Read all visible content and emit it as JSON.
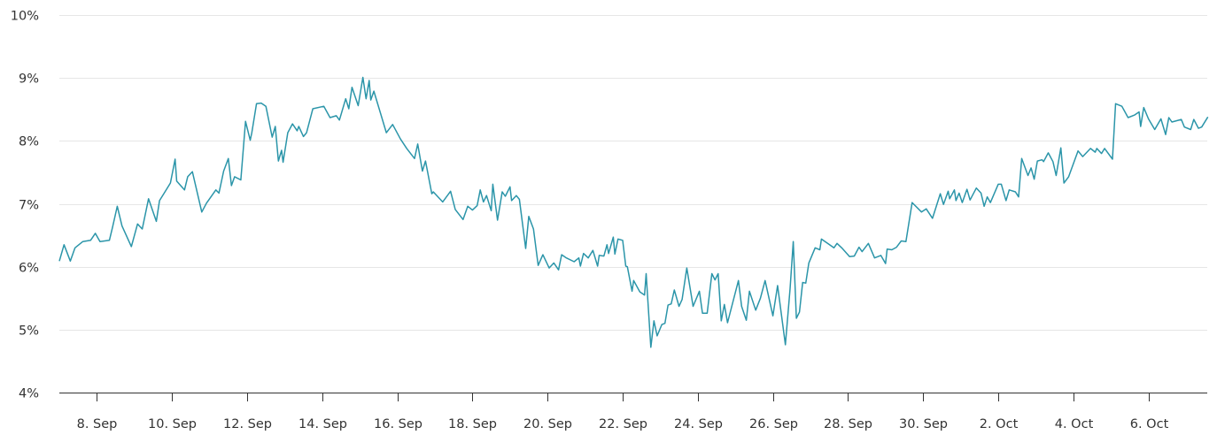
{
  "chart_data": {
    "type": "line",
    "title": "",
    "xlabel": "",
    "ylabel": "",
    "ylim": [
      4,
      10
    ],
    "y_ticks": [
      "4%",
      "5%",
      "6%",
      "7%",
      "8%",
      "9%",
      "10%"
    ],
    "y_tick_values": [
      4,
      5,
      6,
      7,
      8,
      9,
      10
    ],
    "x_ticks": [
      "8. Sep",
      "10. Sep",
      "12. Sep",
      "14. Sep",
      "16. Sep",
      "18. Sep",
      "20. Sep",
      "22. Sep",
      "24. Sep",
      "26. Sep",
      "28. Sep",
      "30. Sep",
      "2. Oct",
      "4. Oct",
      "6. Oct"
    ],
    "x_tick_dates": [
      "09-08 00:00",
      "09-10 00:00",
      "09-12 00:00",
      "09-14 00:00",
      "09-16 00:00",
      "09-18 00:00",
      "09-20 00:00",
      "09-22 00:00",
      "09-24 00:00",
      "09-26 00:00",
      "09-28 00:00",
      "09-30 00:00",
      "10-02 00:00",
      "10-04 00:00",
      "10-06 00:00"
    ],
    "xlim": [
      "09-07 00:00",
      "10-07 14:00"
    ],
    "grid": true,
    "legend": "none",
    "line_color": "#2b95a9",
    "series": [
      {
        "x": [
          "09-07 00:00",
          "09-07 03:00",
          "09-07 07:00",
          "09-07 10:00",
          "09-07 15:00",
          "09-07 20:00",
          "09-07 23:00",
          "09-08 02:00",
          "09-08 08:00",
          "09-08 10:00",
          "09-08 13:00",
          "09-08 16:00",
          "09-08 22:00",
          "09-09 02:00",
          "09-09 05:00",
          "09-09 09:00",
          "09-09 14:00",
          "09-09 16:00",
          "09-09 19:00",
          "09-09 23:00",
          "09-10 02:00",
          "09-10 03:00",
          "09-10 08:00",
          "09-10 10:00",
          "09-10 13:00",
          "09-10 19:00",
          "09-10 22:00",
          "09-11 04:00",
          "09-11 06:00",
          "09-11 09:00",
          "09-11 12:00",
          "09-11 14:00",
          "09-11 16:00",
          "09-11 20:00",
          "09-11 23:00",
          "09-12 02:00",
          "09-12 03:00",
          "09-12 06:00",
          "09-12 09:00",
          "09-12 12:00",
          "09-12 16:00",
          "09-12 18:00",
          "09-12 20:00",
          "09-12 22:00",
          "09-12 23:00",
          "09-13 02:00",
          "09-13 05:00",
          "09-13 08:00",
          "09-13 09:00",
          "09-13 12:00",
          "09-13 14:00",
          "09-13 18:00",
          "09-14 01:00",
          "09-14 05:00",
          "09-14 09:00",
          "09-14 11:00",
          "09-14 15:00",
          "09-14 17:00",
          "09-14 19:00",
          "09-14 23:00",
          "09-15 02:00",
          "09-15 04:00",
          "09-15 06:00",
          "09-15 07:00",
          "09-15 09:00",
          "09-15 17:00",
          "09-15 21:00",
          "09-16 02:00",
          "09-16 06:00",
          "09-16 11:00",
          "09-16 13:00",
          "09-16 16:00",
          "09-16 18:00",
          "09-16 22:00",
          "09-16 23:00",
          "09-17 05:00",
          "09-17 10:00",
          "09-17 13:00",
          "09-17 18:00",
          "09-17 21:00",
          "09-18 00:00",
          "09-18 03:00",
          "09-18 05:00",
          "09-18 07:00",
          "09-18 09:00",
          "09-18 12:00",
          "09-18 13:00",
          "09-18 16:00",
          "09-18 19:00",
          "09-18 21:00",
          "09-19 00:00",
          "09-19 01:00",
          "09-19 04:00",
          "09-19 06:00",
          "09-19 10:00",
          "09-19 12:00",
          "09-19 15:00",
          "09-19 18:00",
          "09-19 21:00",
          "09-20 01:00",
          "09-20 04:00",
          "09-20 07:00",
          "09-20 09:00",
          "09-20 12:00",
          "09-20 17:00",
          "09-20 20:00",
          "09-20 21:00",
          "09-20 23:00",
          "09-21 02:00",
          "09-21 05:00",
          "09-21 08:00",
          "09-21 09:00",
          "09-21 12:00",
          "09-21 14:00",
          "09-21 15:00",
          "09-21 18:00",
          "09-21 19:00",
          "09-21 21:00",
          "09-22 00:00",
          "09-22 02:00",
          "09-22 03:00",
          "09-22 06:00",
          "09-22 07:00",
          "09-22 11:00",
          "09-22 14:00",
          "09-22 15:00",
          "09-22 18:00",
          "09-22 20:00",
          "09-22 22:00",
          "09-23 01:00",
          "09-23 03:00",
          "09-23 05:00",
          "09-23 07:00",
          "09-23 09:00",
          "09-23 12:00",
          "09-23 14:00",
          "09-23 17:00",
          "09-23 21:00",
          "09-24 01:00",
          "09-24 03:00",
          "09-24 06:00",
          "09-24 09:00",
          "09-24 11:00",
          "09-24 13:00",
          "09-24 15:00",
          "09-24 17:00",
          "09-24 19:00",
          "09-25 02:00",
          "09-25 04:00",
          "09-25 07:00",
          "09-25 09:00",
          "09-25 13:00",
          "09-25 16:00",
          "09-25 19:00",
          "09-26 00:00",
          "09-26 03:00",
          "09-26 08:00",
          "09-26 11:00",
          "09-26 13:00",
          "09-26 15:00",
          "09-26 17:00",
          "09-26 19:00",
          "09-26 21:00",
          "09-26 23:00",
          "09-27 03:00",
          "09-27 06:00",
          "09-27 07:00",
          "09-27 11:00",
          "09-27 15:00",
          "09-27 17:00",
          "09-27 20:00",
          "09-28 01:00",
          "09-28 04:00",
          "09-28 07:00",
          "09-28 09:00",
          "09-28 13:00",
          "09-28 17:00",
          "09-28 21:00",
          "09-29 00:00",
          "09-29 01:00",
          "09-29 04:00",
          "09-29 07:00",
          "09-29 10:00",
          "09-29 13:00",
          "09-29 17:00",
          "09-29 23:00",
          "09-30 02:00",
          "09-30 06:00",
          "09-30 11:00",
          "09-30 13:00",
          "09-30 16:00",
          "09-30 17:00",
          "09-30 20:00",
          "09-30 21:00",
          "09-30 23:00",
          "10-01 01:00",
          "10-01 04:00",
          "10-01 06:00",
          "10-01 10:00",
          "10-01 13:00",
          "10-01 15:00",
          "10-01 17:00",
          "10-01 19:00",
          "10-02 00:00",
          "10-02 02:00",
          "10-02 05:00",
          "10-02 07:00",
          "10-02 11:00",
          "10-02 13:00",
          "10-02 15:00",
          "10-02 19:00",
          "10-02 21:00",
          "10-02 23:00",
          "10-03 01:00",
          "10-03 04:00",
          "10-03 05:00",
          "10-03 08:00",
          "10-03 11:00",
          "10-03 13:00",
          "10-03 16:00",
          "10-03 18:00",
          "10-03 21:00",
          "10-04 03:00",
          "10-04 06:00",
          "10-04 11:00",
          "10-04 14:00",
          "10-04 15:00",
          "10-04 18:00",
          "10-04 20:00",
          "10-05 01:00",
          "10-05 03:00",
          "10-05 07:00",
          "10-05 11:00",
          "10-05 15:00",
          "10-05 18:00",
          "10-05 19:00",
          "10-05 21:00",
          "10-06 00:00",
          "10-06 04:00",
          "10-06 08:00",
          "10-06 11:00",
          "10-06 13:00",
          "10-06 15:00",
          "10-06 21:00",
          "10-06 23:00",
          "10-07 03:00",
          "10-07 05:00",
          "10-07 08:00",
          "10-07 10:00",
          "10-07 14:00"
        ],
        "y": [
          6.09,
          6.35,
          6.09,
          6.3,
          6.4,
          6.42,
          6.53,
          6.4,
          6.42,
          6.63,
          6.96,
          6.65,
          6.32,
          6.68,
          6.6,
          7.08,
          6.72,
          7.05,
          7.17,
          7.33,
          7.71,
          7.36,
          7.22,
          7.43,
          7.51,
          6.87,
          7.01,
          7.22,
          7.17,
          7.52,
          7.72,
          7.29,
          7.43,
          7.38,
          8.31,
          8.01,
          8.13,
          8.59,
          8.6,
          8.55,
          8.06,
          8.23,
          7.68,
          7.85,
          7.66,
          8.13,
          8.27,
          8.16,
          8.23,
          8.07,
          8.13,
          8.51,
          8.55,
          8.37,
          8.4,
          8.33,
          8.67,
          8.51,
          8.85,
          8.56,
          9.01,
          8.67,
          8.96,
          8.65,
          8.79,
          8.13,
          8.26,
          8.03,
          7.88,
          7.72,
          7.95,
          7.52,
          7.68,
          7.16,
          7.19,
          7.03,
          7.2,
          6.91,
          6.75,
          6.96,
          6.9,
          6.97,
          7.22,
          7.03,
          7.13,
          6.89,
          7.31,
          6.74,
          7.19,
          7.12,
          7.27,
          7.05,
          7.13,
          7.07,
          6.29,
          6.8,
          6.6,
          6.02,
          6.19,
          5.98,
          6.06,
          5.95,
          6.19,
          6.14,
          6.08,
          6.14,
          6.01,
          6.21,
          6.14,
          6.26,
          6.01,
          6.18,
          6.17,
          6.35,
          6.21,
          6.47,
          6.2,
          6.44,
          6.42,
          6.01,
          6.0,
          5.61,
          5.78,
          5.6,
          5.55,
          5.89,
          4.72,
          5.14,
          4.9,
          5.08,
          5.1,
          5.39,
          5.41,
          5.63,
          5.37,
          5.48,
          5.98,
          5.37,
          5.61,
          5.26,
          5.26,
          5.89,
          5.79,
          5.89,
          5.14,
          5.4,
          5.11,
          5.78,
          5.37,
          5.15,
          5.61,
          5.31,
          5.5,
          5.78,
          5.22,
          5.7,
          4.76,
          5.65,
          6.4,
          5.18,
          5.28,
          5.75,
          5.74,
          6.06,
          6.3,
          6.27,
          6.44,
          6.37,
          6.3,
          6.37,
          6.3,
          6.16,
          6.17,
          6.31,
          6.24,
          6.37,
          6.14,
          6.18,
          6.05,
          6.28,
          6.27,
          6.31,
          6.41,
          6.4,
          7.02,
          6.87,
          6.92,
          6.77,
          7.16,
          6.99,
          7.2,
          7.08,
          7.22,
          7.05,
          7.17,
          7.02,
          7.23,
          7.06,
          7.25,
          7.17,
          6.96,
          7.11,
          7.02,
          7.31,
          7.31,
          7.05,
          7.22,
          7.19,
          7.11,
          7.72,
          7.45,
          7.57,
          7.39,
          7.68,
          7.7,
          7.67,
          7.81,
          7.67,
          7.45,
          7.89,
          7.33,
          7.43,
          7.84,
          7.75,
          7.88,
          7.82,
          7.88,
          7.8,
          7.88,
          7.71,
          8.59,
          8.55,
          8.37,
          8.41,
          8.46,
          8.23,
          8.53,
          8.35,
          8.18,
          8.35,
          8.1,
          8.37,
          8.3,
          8.34,
          8.22,
          8.18,
          8.34,
          8.2,
          8.22,
          8.38
        ]
      }
    ]
  }
}
